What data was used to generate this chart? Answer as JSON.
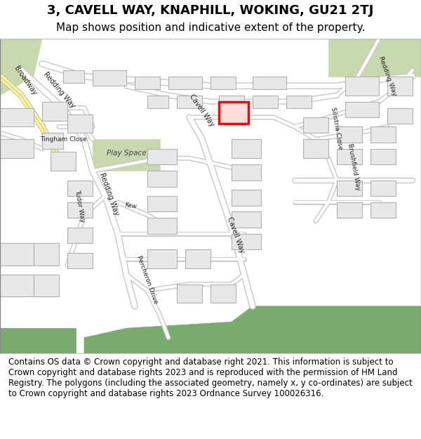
{
  "title_line1": "3, CAVELL WAY, KNAPHILL, WOKING, GU21 2TJ",
  "title_line2": "Map shows position and indicative extent of the property.",
  "footer_text": "Contains OS data © Crown copyright and database right 2021. This information is subject to Crown copyright and database rights 2023 and is reproduced with the permission of HM Land Registry. The polygons (including the associated geometry, namely x, y co-ordinates) are subject to Crown copyright and database rights 2023 Ordnance Survey 100026316.",
  "bg_color": "#f0efe9",
  "road_color": "#ffffff",
  "road_outline_color": "#c8c8c8",
  "building_fill": "#e8e8e8",
  "building_outline": "#b0b0b0",
  "green_color": "#7aaa6e",
  "green_light": "#c8d9b0",
  "yellow_road": "#f5f0a0",
  "target_fill": "#ff0000",
  "target_outline": "#cc0000",
  "map_bg": "#f2f1ec",
  "header_bg": "#ffffff",
  "footer_bg": "#ffffff",
  "title_fontsize": 13,
  "subtitle_fontsize": 11,
  "footer_fontsize": 8.5
}
